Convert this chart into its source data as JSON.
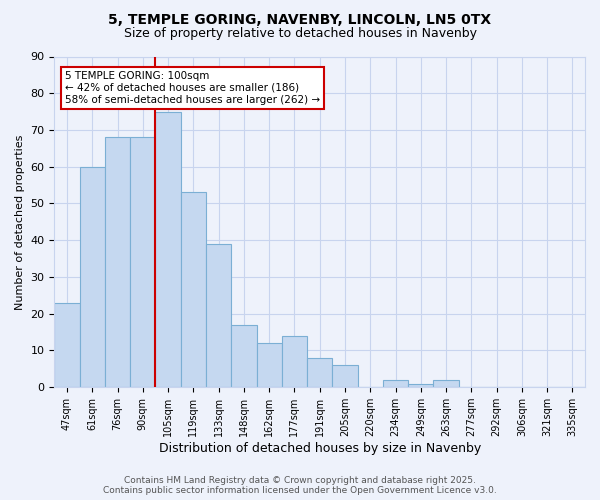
{
  "title1": "5, TEMPLE GORING, NAVENBY, LINCOLN, LN5 0TX",
  "title2": "Size of property relative to detached houses in Navenby",
  "xlabel": "Distribution of detached houses by size in Navenby",
  "ylabel": "Number of detached properties",
  "bin_labels": [
    "47sqm",
    "61sqm",
    "76sqm",
    "90sqm",
    "105sqm",
    "119sqm",
    "133sqm",
    "148sqm",
    "162sqm",
    "177sqm",
    "191sqm",
    "205sqm",
    "220sqm",
    "234sqm",
    "249sqm",
    "263sqm",
    "277sqm",
    "292sqm",
    "306sqm",
    "321sqm",
    "335sqm"
  ],
  "bar_values": [
    23,
    60,
    68,
    68,
    75,
    53,
    39,
    17,
    12,
    14,
    8,
    6,
    0,
    2,
    1,
    2,
    0,
    0,
    0,
    0,
    0
  ],
  "bar_color": "#c5d8f0",
  "bar_edge_color": "#7bafd4",
  "vline_index": 4,
  "annotation_text": "5 TEMPLE GORING: 100sqm\n← 42% of detached houses are smaller (186)\n58% of semi-detached houses are larger (262) →",
  "annotation_box_color": "#ffffff",
  "annotation_box_edge": "#cc0000",
  "vline_color": "#cc0000",
  "ylim": [
    0,
    90
  ],
  "yticks": [
    0,
    10,
    20,
    30,
    40,
    50,
    60,
    70,
    80,
    90
  ],
  "footer1": "Contains HM Land Registry data © Crown copyright and database right 2025.",
  "footer2": "Contains public sector information licensed under the Open Government Licence v3.0.",
  "bg_color": "#eef2fb",
  "grid_color": "#c8d4ee"
}
